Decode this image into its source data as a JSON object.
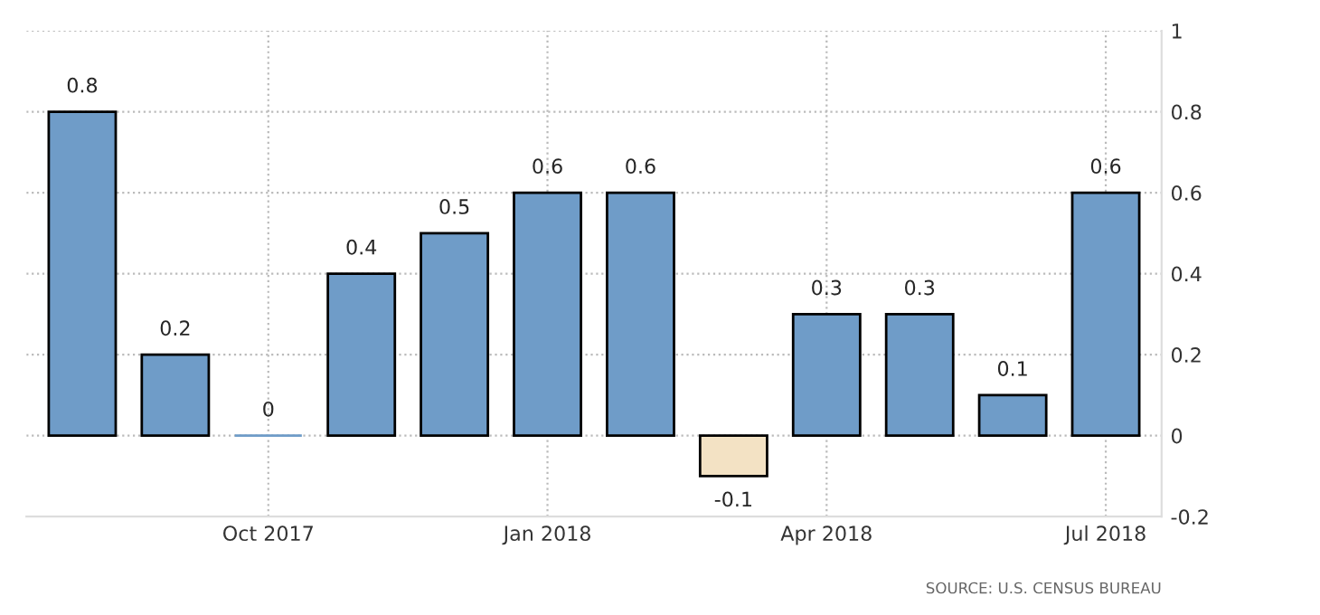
{
  "chart_data": {
    "type": "bar",
    "categories": [
      null,
      null,
      "Oct 2017",
      null,
      null,
      "Jan 2018",
      null,
      null,
      "Apr 2018",
      null,
      null,
      "Jul 2018"
    ],
    "values": [
      0.8,
      0.2,
      0,
      0.4,
      0.5,
      0.6,
      0.6,
      -0.1,
      0.3,
      0.3,
      0.1,
      0.6
    ],
    "colors": [
      "#6f9cc8",
      "#6f9cc8",
      "#6f9cc8",
      "#6f9cc8",
      "#6f9cc8",
      "#6f9cc8",
      "#6f9cc8",
      "#f3e2c4",
      "#6f9cc8",
      "#6f9cc8",
      "#6f9cc8",
      "#6f9cc8"
    ],
    "ylim": [
      -0.2,
      1
    ],
    "yticks": [
      -0.2,
      0,
      0.2,
      0.4,
      0.6,
      0.8,
      1
    ],
    "data_labels": true,
    "grid": true,
    "annotations": [
      "SOURCE: U.S. CENSUS BUREAU"
    ]
  }
}
